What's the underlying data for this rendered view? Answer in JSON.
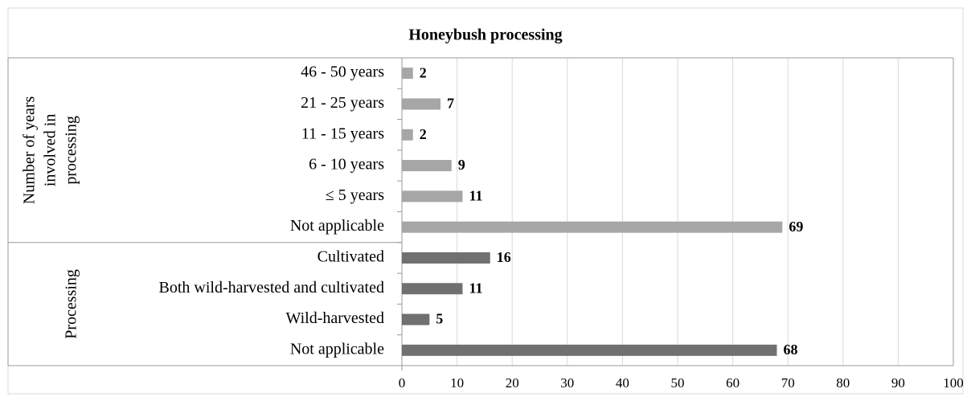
{
  "chart_data": {
    "type": "bar",
    "title": "Honeybush processing",
    "groups": [
      {
        "label": [
          "Number of years",
          "involved in",
          "processing"
        ],
        "color": "#a6a6a6",
        "categories": [
          "46 - 50 years",
          "21 - 25 years",
          "11 - 15 years",
          "6 - 10 years",
          "≤ 5 years",
          "Not applicable"
        ],
        "values": [
          2,
          7,
          2,
          9,
          11,
          69
        ]
      },
      {
        "label": [
          "Processing"
        ],
        "color": "#707070",
        "categories": [
          "Cultivated",
          "Both wild-harvested and cultivated",
          "Wild-harvested",
          "Not applicable"
        ],
        "values": [
          16,
          11,
          5,
          68
        ]
      }
    ],
    "xlim": [
      0,
      100
    ],
    "xticks": [
      0,
      10,
      20,
      30,
      40,
      50,
      60,
      70,
      80,
      90,
      100
    ],
    "grid": true
  }
}
